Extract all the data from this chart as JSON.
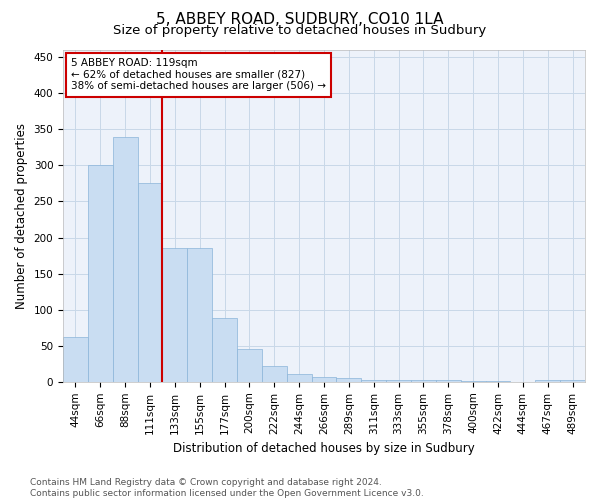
{
  "title": "5, ABBEY ROAD, SUDBURY, CO10 1LA",
  "subtitle": "Size of property relative to detached houses in Sudbury",
  "xlabel": "Distribution of detached houses by size in Sudbury",
  "ylabel": "Number of detached properties",
  "categories": [
    "44sqm",
    "66sqm",
    "88sqm",
    "111sqm",
    "133sqm",
    "155sqm",
    "177sqm",
    "200sqm",
    "222sqm",
    "244sqm",
    "266sqm",
    "289sqm",
    "311sqm",
    "333sqm",
    "355sqm",
    "378sqm",
    "400sqm",
    "422sqm",
    "444sqm",
    "467sqm",
    "489sqm"
  ],
  "values": [
    62,
    301,
    340,
    275,
    185,
    185,
    88,
    46,
    22,
    11,
    7,
    5,
    3,
    3,
    2,
    2,
    1,
    1,
    0,
    3,
    3
  ],
  "bar_color": "#c9ddf2",
  "bar_edge_color": "#8ab4d9",
  "grid_color": "#c8d8e8",
  "background_color": "#edf2fa",
  "vline_x_index": 3.5,
  "vline_color": "#cc0000",
  "annotation_text": "5 ABBEY ROAD: 119sqm\n← 62% of detached houses are smaller (827)\n38% of semi-detached houses are larger (506) →",
  "annotation_box_color": "#ffffff",
  "annotation_box_edge_color": "#cc0000",
  "ylim": [
    0,
    460
  ],
  "yticks": [
    0,
    50,
    100,
    150,
    200,
    250,
    300,
    350,
    400,
    450
  ],
  "footer_line1": "Contains HM Land Registry data © Crown copyright and database right 2024.",
  "footer_line2": "Contains public sector information licensed under the Open Government Licence v3.0.",
  "title_fontsize": 11,
  "subtitle_fontsize": 9.5,
  "axis_label_fontsize": 8.5,
  "tick_fontsize": 7.5,
  "annotation_fontsize": 7.5,
  "footer_fontsize": 6.5
}
